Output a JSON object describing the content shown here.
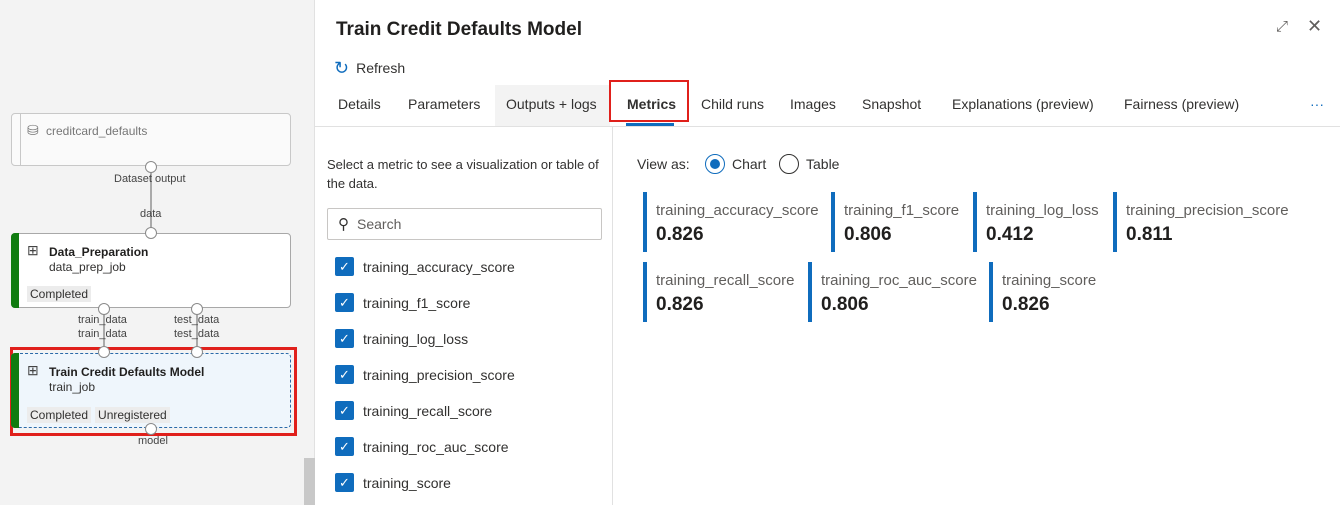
{
  "pipeline": {
    "dataset_node": {
      "name": "creditcard_defaults",
      "output_port": "Dataset output"
    },
    "data_prep_node": {
      "input_port": "data",
      "title": "Data_Preparation",
      "subtitle": "data_prep_job",
      "status": "Completed",
      "output_ports": [
        "train_data",
        "test_data"
      ]
    },
    "train_node": {
      "input_ports": [
        "train_data",
        "test_data"
      ],
      "title": "Train Credit Defaults Model",
      "subtitle": "train_job",
      "badges": [
        "Completed",
        "Unregistered"
      ],
      "output_port": "model"
    }
  },
  "panel": {
    "title": "Train Credit Defaults Model",
    "refresh_label": "Refresh",
    "tabs": [
      "Details",
      "Parameters",
      "Outputs + logs",
      "Metrics",
      "Child runs",
      "Images",
      "Snapshot",
      "Explanations (preview)",
      "Fairness (preview)"
    ],
    "active_tab": "Metrics",
    "more_label": "···"
  },
  "metrics": {
    "instructions": "Select a metric to see a visualization or table of the data.",
    "search_placeholder": "Search",
    "list": [
      "training_accuracy_score",
      "training_f1_score",
      "training_log_loss",
      "training_precision_score",
      "training_recall_score",
      "training_roc_auc_score",
      "training_score"
    ],
    "view_as_label": "View as:",
    "view_options": [
      "Chart",
      "Table"
    ],
    "view_selected": "Chart",
    "cards": [
      {
        "name": "training_accuracy_score",
        "value": "0.826"
      },
      {
        "name": "training_f1_score",
        "value": "0.806"
      },
      {
        "name": "training_log_loss",
        "value": "0.412"
      },
      {
        "name": "training_precision_score",
        "value": "0.811"
      },
      {
        "name": "training_recall_score",
        "value": "0.826"
      },
      {
        "name": "training_roc_auc_score",
        "value": "0.806"
      },
      {
        "name": "training_score",
        "value": "0.826"
      }
    ],
    "accent": "#0f6cbd"
  }
}
